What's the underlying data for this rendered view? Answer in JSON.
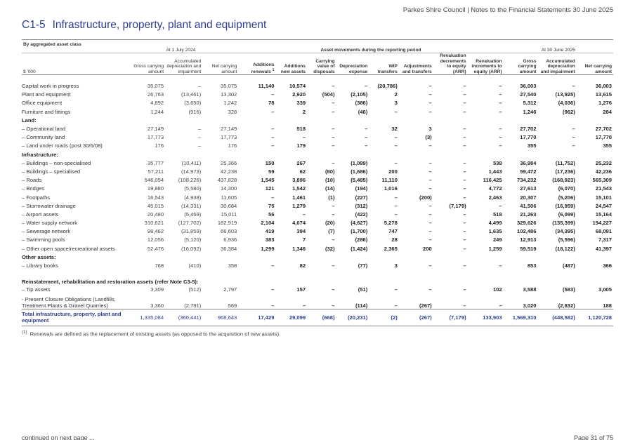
{
  "header": {
    "text": "Parkes Shire Council | Notes to the Financial Statements 30 June 2025"
  },
  "section": {
    "number": "C1-5",
    "title": "Infrastructure, property, plant and equipment"
  },
  "table": {
    "group_headers": {
      "first": "By aggregated asset class",
      "opening": "At 1 July 2024",
      "movements": "Asset movements during the reporting period",
      "closing": "At 30 June 2025"
    },
    "unit_label": "$ '000",
    "columns": [
      "Gross carrying amount",
      "Accumulated depreciation and impairment",
      "Net carrying amount",
      "Additions renewals",
      "Additions new assets",
      "Carrying value of disposals",
      "Depreciation expense",
      "WIP transfers",
      "Adjustments and transfers",
      "Revaluation decrements to equity (ARR)",
      "Revaluation increments to equity (ARR)",
      "Gross carrying amount",
      "Accumulated depreciation and impairment",
      "Net carrying amount"
    ],
    "additions_footnote_marker": "1",
    "rows": [
      {
        "label": "Capital work in progress",
        "type": "data",
        "values": [
          "35,075",
          "–",
          "35,075",
          "11,140",
          "10,574",
          "–",
          "–",
          "(20,786)",
          "–",
          "–",
          "–",
          "36,003",
          "–",
          "36,003"
        ]
      },
      {
        "label": "Plant and equipment",
        "type": "data",
        "values": [
          "26,763",
          "(13,461)",
          "13,302",
          "–",
          "2,920",
          "(504)",
          "(2,105)",
          "2",
          "–",
          "–",
          "–",
          "27,540",
          "(13,925)",
          "13,615"
        ]
      },
      {
        "label": "Office equipment",
        "type": "data",
        "values": [
          "4,892",
          "(3,650)",
          "1,242",
          "78",
          "339",
          "–",
          "(386)",
          "3",
          "–",
          "–",
          "–",
          "5,312",
          "(4,036)",
          "1,276"
        ]
      },
      {
        "label": "Furniture and fittings",
        "type": "data",
        "values": [
          "1,244",
          "(916)",
          "328",
          "–",
          "2",
          "–",
          "(46)",
          "–",
          "–",
          "–",
          "–",
          "1,246",
          "(962)",
          "284"
        ]
      },
      {
        "label": "Land:",
        "type": "sub"
      },
      {
        "label": "– Operational land",
        "type": "data",
        "values": [
          "27,149",
          "–",
          "27,149",
          "–",
          "518",
          "–",
          "–",
          "32",
          "3",
          "–",
          "–",
          "27,702",
          "–",
          "27,702"
        ]
      },
      {
        "label": "– Community land",
        "type": "data",
        "values": [
          "17,773",
          "–",
          "17,773",
          "–",
          "–",
          "–",
          "–",
          "–",
          "(3)",
          "–",
          "–",
          "17,770",
          "–",
          "17,770"
        ]
      },
      {
        "label": "– Land under roads (post 30/6/08)",
        "type": "data",
        "values": [
          "176",
          "–",
          "176",
          "–",
          "179",
          "–",
          "–",
          "–",
          "–",
          "–",
          "–",
          "355",
          "–",
          "355"
        ]
      },
      {
        "label": "Infrastructure:",
        "type": "sub"
      },
      {
        "label": "– Buildings – non-specialised",
        "type": "data",
        "values": [
          "35,777",
          "(10,411)",
          "25,366",
          "150",
          "267",
          "–",
          "(1,089)",
          "–",
          "–",
          "–",
          "538",
          "36,984",
          "(11,752)",
          "25,232"
        ]
      },
      {
        "label": "– Buildings – specialised",
        "type": "data",
        "values": [
          "57,211",
          "(14,973)",
          "42,238",
          "59",
          "62",
          "(80)",
          "(1,686)",
          "200",
          "–",
          "–",
          "1,443",
          "59,472",
          "(17,236)",
          "42,236"
        ]
      },
      {
        "label": "– Roads",
        "type": "data",
        "values": [
          "546,054",
          "(108,226)",
          "437,828",
          "1,545",
          "3,896",
          "(10)",
          "(5,485)",
          "11,110",
          "–",
          "–",
          "116,425",
          "734,232",
          "(168,923)",
          "565,309"
        ]
      },
      {
        "label": "– Bridges",
        "type": "data",
        "values": [
          "19,880",
          "(5,580)",
          "14,300",
          "121",
          "1,542",
          "(14)",
          "(194)",
          "1,016",
          "–",
          "–",
          "4,772",
          "27,613",
          "(6,070)",
          "21,543"
        ]
      },
      {
        "label": "– Footpaths",
        "type": "data",
        "values": [
          "16,543",
          "(4,938)",
          "11,605",
          "–",
          "1,461",
          "(1)",
          "(227)",
          "–",
          "(200)",
          "–",
          "2,463",
          "20,307",
          "(5,206)",
          "15,101"
        ]
      },
      {
        "label": "– Stormwater drainage",
        "type": "data",
        "values": [
          "45,015",
          "(14,331)",
          "30,684",
          "75",
          "1,279",
          "–",
          "(312)",
          "–",
          "–",
          "(7,179)",
          "–",
          "41,506",
          "(16,959)",
          "24,547"
        ]
      },
      {
        "label": "– Airport assets",
        "type": "data",
        "values": [
          "20,480",
          "(5,469)",
          "15,011",
          "56",
          "–",
          "–",
          "(422)",
          "–",
          "–",
          "–",
          "518",
          "21,263",
          "(6,099)",
          "15,164"
        ]
      },
      {
        "label": "– Water supply network",
        "type": "data",
        "values": [
          "310,621",
          "(127,702)",
          "182,919",
          "2,104",
          "4,074",
          "(20)",
          "(4,627)",
          "5,278",
          "–",
          "–",
          "4,499",
          "329,626",
          "(135,399)",
          "194,227"
        ]
      },
      {
        "label": "– Sewerage network",
        "type": "data",
        "values": [
          "98,462",
          "(31,859)",
          "66,603",
          "419",
          "394",
          "(7)",
          "(1,700)",
          "747",
          "–",
          "–",
          "1,635",
          "102,486",
          "(34,395)",
          "68,091"
        ]
      },
      {
        "label": "– Swimming pools",
        "type": "data",
        "values": [
          "12,056",
          "(5,120)",
          "6,936",
          "383",
          "7",
          "–",
          "(286)",
          "28",
          "–",
          "–",
          "249",
          "12,913",
          "(5,596)",
          "7,317"
        ]
      },
      {
        "label": "– Other open space/recreational assets",
        "type": "data",
        "values": [
          "52,476",
          "(16,092)",
          "36,384",
          "1,299",
          "1,346",
          "(32)",
          "(1,424)",
          "2,365",
          "200",
          "–",
          "1,259",
          "59,519",
          "(18,122)",
          "41,397"
        ]
      },
      {
        "label": "Other assets:",
        "type": "sub"
      },
      {
        "label": "– Library books",
        "type": "data",
        "values": [
          "768",
          "(410)",
          "358",
          "–",
          "82",
          "–",
          "(77)",
          "3",
          "–",
          "–",
          "–",
          "853",
          "(487)",
          "366"
        ]
      },
      {
        "label": "Reinstatement, rehabilitation and restoration assets (refer Note C3-5):",
        "type": "sub-two"
      },
      {
        "label": "– Tip assets",
        "type": "data",
        "values": [
          "3,309",
          "(512)",
          "2,797",
          "–",
          "157",
          "–",
          "(51)",
          "–",
          "–",
          "–",
          "102",
          "3,588",
          "(583)",
          "3,005"
        ]
      },
      {
        "label": "- Present Closure Obligations (Landfills, Treatment Plants & Gravel Quarries)",
        "type": "data-two",
        "values": [
          "3,360",
          "(2,791)",
          "569",
          "–",
          "–",
          "–",
          "(114)",
          "–",
          "(267)",
          "–",
          "–",
          "3,020",
          "(2,832)",
          "188"
        ]
      },
      {
        "label": "Total infrastructure, property, plant and equipment",
        "type": "total",
        "values": [
          "1,335,084",
          "(366,441)",
          "968,643",
          "17,429",
          "29,099",
          "(668)",
          "(20,231)",
          "(2)",
          "(267)",
          "(7,179)",
          "133,903",
          "1,569,310",
          "(448,582)",
          "1,120,728"
        ]
      }
    ]
  },
  "footnote": {
    "marker": "(1)",
    "text": "Renewals are defined as the replacement of existing assets (as opposed to the acquisition of new assets)."
  },
  "footer": {
    "continued": "continued on next page ...",
    "page": "Page 31 of 75"
  }
}
